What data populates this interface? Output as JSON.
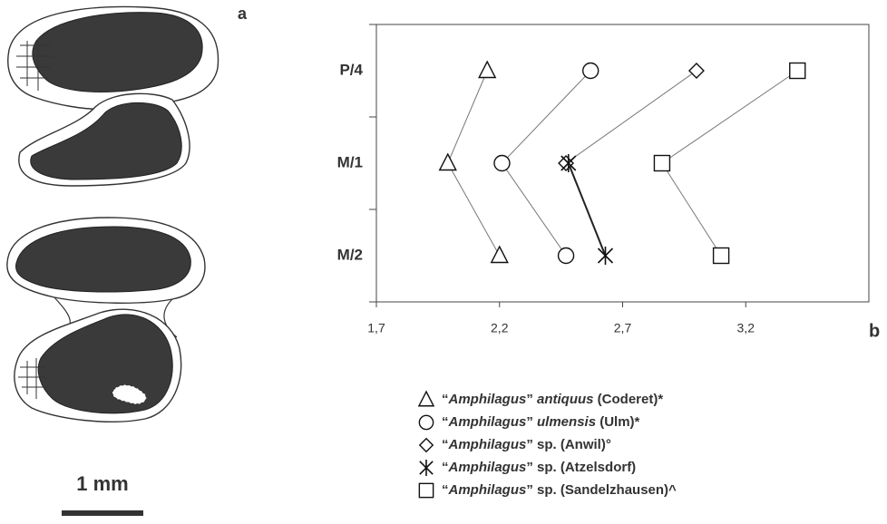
{
  "chart_data": {
    "type": "line",
    "panel_labels": [
      "a",
      "b"
    ],
    "scale_bar_label": "1 mm",
    "categories": [
      "P/4",
      "M/1",
      "M/2"
    ],
    "xlim": [
      1.7,
      3.7
    ],
    "xticks": [
      {
        "value": 1.7,
        "label": "1,7"
      },
      {
        "value": 2.2,
        "label": "2,2"
      },
      {
        "value": 2.7,
        "label": "2,7"
      },
      {
        "value": 3.2,
        "label": "3,2"
      }
    ],
    "series": [
      {
        "name": "“Amphilagus” antiquus (Coderet)*",
        "marker": "triangle",
        "color": "#777777",
        "values": [
          2.15,
          1.99,
          2.2
        ]
      },
      {
        "name": "“Amphilagus” ulmensis (Ulm)*",
        "marker": "circle",
        "color": "#777777",
        "values": [
          2.57,
          2.21,
          2.47
        ]
      },
      {
        "name": "“Amphilagus” sp. (Anwil)°",
        "marker": "diamond",
        "color": "#777777",
        "values": [
          3.0,
          2.47,
          null
        ]
      },
      {
        "name": "“Amphilagus” sp. (Atzelsdorf)",
        "marker": "asterisk",
        "color": "#222222",
        "values": [
          null,
          2.48,
          2.63
        ]
      },
      {
        "name": "“Amphilagus” sp. (Sandelzhausen)^",
        "marker": "square",
        "color": "#777777",
        "values": [
          3.41,
          2.86,
          3.1
        ]
      }
    ]
  }
}
